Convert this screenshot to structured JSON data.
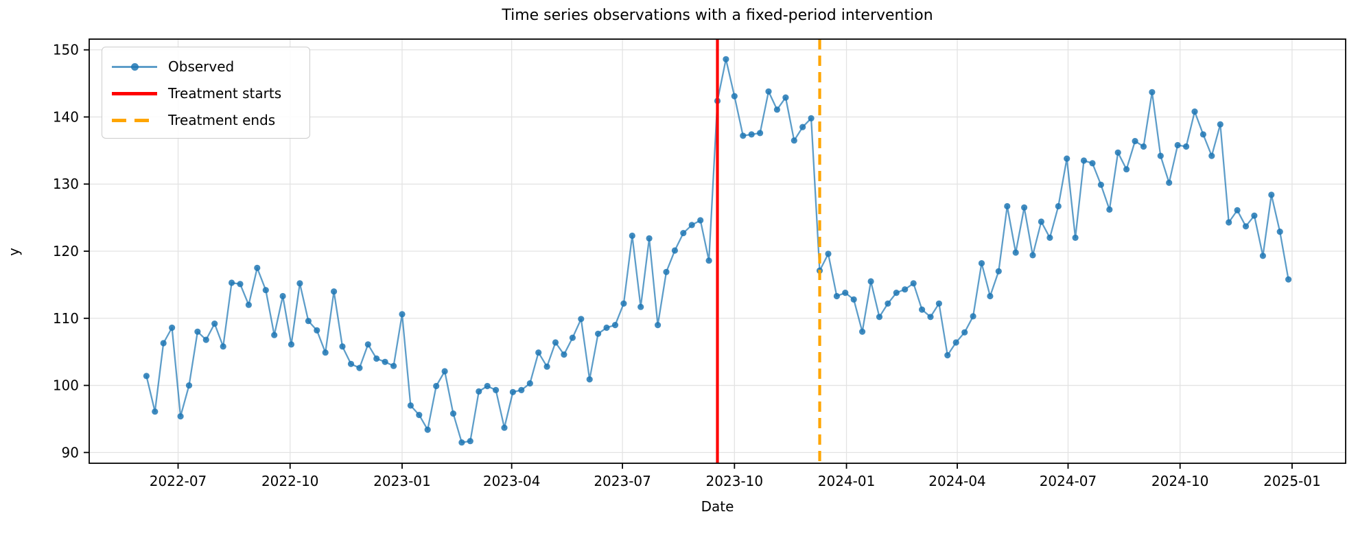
{
  "title": "Time series observations with a fixed-period intervention",
  "xlabel": "Date",
  "ylabel": "y",
  "colors": {
    "observed_line": "rgba(31,119,180,0.72)",
    "observed_marker": "rgba(31,119,180,0.85)",
    "treatment_start": "#ff0000",
    "treatment_end": "#ffa500",
    "grid": "#e3e3e3",
    "spine": "#000000",
    "tick_label": "#000000"
  },
  "legend": {
    "items": [
      {
        "label": "Observed",
        "glyph": "line-marker"
      },
      {
        "label": "Treatment starts",
        "glyph": "solid-line"
      },
      {
        "label": "Treatment ends",
        "glyph": "dashed-line"
      }
    ]
  },
  "chart_data": {
    "type": "line",
    "title": "Time series observations with a fixed-period intervention",
    "xlabel": "Date",
    "ylabel": "y",
    "grid": true,
    "legend_position": "upper left",
    "ylim": [
      88.4,
      151.6
    ],
    "xlim": [
      "2022-04-19",
      "2025-02-14"
    ],
    "y_ticks": [
      90,
      100,
      110,
      120,
      130,
      140,
      150
    ],
    "x_ticks": [
      {
        "label": "2022-07",
        "date": "2022-07-01"
      },
      {
        "label": "2022-10",
        "date": "2022-10-01"
      },
      {
        "label": "2023-01",
        "date": "2023-01-01"
      },
      {
        "label": "2023-04",
        "date": "2023-04-01"
      },
      {
        "label": "2023-07",
        "date": "2023-07-01"
      },
      {
        "label": "2023-10",
        "date": "2023-10-01"
      },
      {
        "label": "2024-01",
        "date": "2024-01-01"
      },
      {
        "label": "2024-04",
        "date": "2024-04-01"
      },
      {
        "label": "2024-07",
        "date": "2024-07-01"
      },
      {
        "label": "2024-10",
        "date": "2024-10-01"
      },
      {
        "label": "2025-01",
        "date": "2025-01-01"
      }
    ],
    "series": [
      {
        "name": "Observed",
        "start_date": "2022-06-05",
        "freq_days": 7,
        "values": [
          101.4,
          96.1,
          106.3,
          108.6,
          95.4,
          100.0,
          108.0,
          106.8,
          109.2,
          105.8,
          115.3,
          115.1,
          112.0,
          117.5,
          114.2,
          107.5,
          113.3,
          106.1,
          115.2,
          109.6,
          108.2,
          104.9,
          114.0,
          105.8,
          103.2,
          102.6,
          106.1,
          104.0,
          103.5,
          102.9,
          110.6,
          97.0,
          95.6,
          93.4,
          99.9,
          102.1,
          95.8,
          91.5,
          91.7,
          99.1,
          99.9,
          99.3,
          93.7,
          99.0,
          99.3,
          100.3,
          104.9,
          102.8,
          106.4,
          104.6,
          107.1,
          109.9,
          100.9,
          107.7,
          108.6,
          109.0,
          112.2,
          122.3,
          111.7,
          121.9,
          109.0,
          116.9,
          120.1,
          122.7,
          123.9,
          124.6,
          118.6,
          142.4,
          148.6,
          143.1,
          137.2,
          137.4,
          137.6,
          143.8,
          141.1,
          142.9,
          136.5,
          138.5,
          139.8,
          117.1,
          119.6,
          113.3,
          113.8,
          112.8,
          108.0,
          115.5,
          110.2,
          112.2,
          113.8,
          114.3,
          115.2,
          111.3,
          110.2,
          112.2,
          104.5,
          106.4,
          107.9,
          110.3,
          118.2,
          113.3,
          117.0,
          126.7,
          119.8,
          126.5,
          119.4,
          124.4,
          122.0,
          126.7,
          133.8,
          122.0,
          133.5,
          133.1,
          129.9,
          126.2,
          134.7,
          132.2,
          136.4,
          135.6,
          143.7,
          134.2,
          130.2,
          135.8,
          135.6,
          140.8,
          137.4,
          134.2,
          138.9,
          124.3,
          126.1,
          123.7,
          125.3,
          119.3,
          128.4,
          122.9,
          115.8
        ]
      }
    ],
    "events": [
      {
        "label": "Treatment starts",
        "date": "2023-09-17",
        "style": "solid",
        "color": "#ff0000"
      },
      {
        "label": "Treatment ends",
        "date": "2023-12-10",
        "style": "dashed",
        "color": "#ffa500"
      }
    ]
  }
}
